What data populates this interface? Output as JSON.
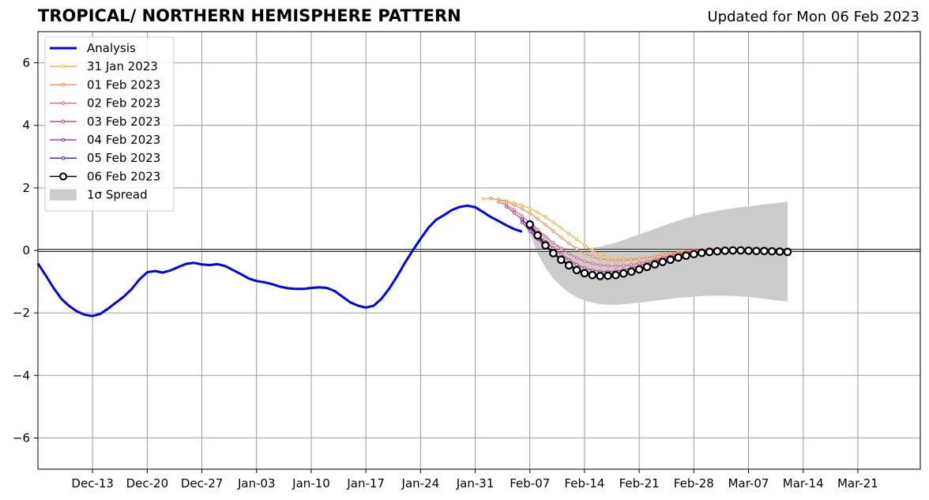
{
  "chart_data": {
    "type": "line",
    "title": "TROPICAL/ NORTHERN HEMISPHERE PATTERN",
    "subtitle": "Updated for Mon 06 Feb 2023",
    "xlabel": "",
    "ylabel": "",
    "x_range": [
      "2022-12-06",
      "2023-03-29"
    ],
    "ylim": [
      -7,
      7
    ],
    "y_ticks": [
      -6,
      -4,
      -2,
      0,
      2,
      4,
      6
    ],
    "x_ticks": [
      {
        "date": "2022-12-13",
        "label": "Dec-13"
      },
      {
        "date": "2022-12-20",
        "label": "Dec-20"
      },
      {
        "date": "2022-12-27",
        "label": "Dec-27"
      },
      {
        "date": "2023-01-03",
        "label": "Jan-03"
      },
      {
        "date": "2023-01-10",
        "label": "Jan-10"
      },
      {
        "date": "2023-01-17",
        "label": "Jan-17"
      },
      {
        "date": "2023-01-24",
        "label": "Jan-24"
      },
      {
        "date": "2023-01-31",
        "label": "Jan-31"
      },
      {
        "date": "2023-02-07",
        "label": "Feb-07"
      },
      {
        "date": "2023-02-14",
        "label": "Feb-14"
      },
      {
        "date": "2023-02-21",
        "label": "Feb-21"
      },
      {
        "date": "2023-02-28",
        "label": "Feb-28"
      },
      {
        "date": "2023-03-07",
        "label": "Mar-07"
      },
      {
        "date": "2023-03-14",
        "label": "Mar-14"
      },
      {
        "date": "2023-03-21",
        "label": "Mar-21"
      }
    ],
    "grid": true,
    "zero_line": true,
    "legend_position": "top-left",
    "colors": {
      "analysis": "#0000ee",
      "spread": "#cccccc",
      "grid": "#999999"
    },
    "analysis": {
      "name": "Analysis",
      "x": [
        "2022-12-06",
        "2022-12-07",
        "2022-12-08",
        "2022-12-09",
        "2022-12-10",
        "2022-12-11",
        "2022-12-12",
        "2022-12-13",
        "2022-12-14",
        "2022-12-15",
        "2022-12-16",
        "2022-12-17",
        "2022-12-18",
        "2022-12-19",
        "2022-12-20",
        "2022-12-21",
        "2022-12-22",
        "2022-12-23",
        "2022-12-24",
        "2022-12-25",
        "2022-12-26",
        "2022-12-27",
        "2022-12-28",
        "2022-12-29",
        "2022-12-30",
        "2022-12-31",
        "2023-01-01",
        "2023-01-02",
        "2023-01-03",
        "2023-01-04",
        "2023-01-05",
        "2023-01-06",
        "2023-01-07",
        "2023-01-08",
        "2023-01-09",
        "2023-01-10",
        "2023-01-11",
        "2023-01-12",
        "2023-01-13",
        "2023-01-14",
        "2023-01-15",
        "2023-01-16",
        "2023-01-17",
        "2023-01-18",
        "2023-01-19",
        "2023-01-20",
        "2023-01-21",
        "2023-01-22",
        "2023-01-23",
        "2023-01-24",
        "2023-01-25",
        "2023-01-26",
        "2023-01-27",
        "2023-01-28",
        "2023-01-29",
        "2023-01-30",
        "2023-01-31",
        "2023-02-01",
        "2023-02-02",
        "2023-02-03",
        "2023-02-04",
        "2023-02-05",
        "2023-02-06"
      ],
      "y": [
        -0.42,
        -0.8,
        -1.2,
        -1.55,
        -1.78,
        -1.95,
        -2.06,
        -2.1,
        -2.03,
        -1.86,
        -1.67,
        -1.48,
        -1.24,
        -0.93,
        -0.7,
        -0.66,
        -0.71,
        -0.64,
        -0.53,
        -0.43,
        -0.4,
        -0.45,
        -0.47,
        -0.44,
        -0.5,
        -0.63,
        -0.76,
        -0.9,
        -0.98,
        -1.02,
        -1.08,
        -1.16,
        -1.21,
        -1.23,
        -1.23,
        -1.2,
        -1.18,
        -1.2,
        -1.3,
        -1.48,
        -1.66,
        -1.77,
        -1.83,
        -1.77,
        -1.55,
        -1.22,
        -0.83,
        -0.4,
        0.0,
        0.37,
        0.72,
        0.98,
        1.13,
        1.29,
        1.39,
        1.43,
        1.38,
        1.23,
        1.07,
        0.94,
        0.8,
        0.68,
        0.6
      ]
    },
    "forecasts": [
      {
        "name": "31 Jan 2023",
        "color": "#f6b03a",
        "x": [
          "2023-02-01",
          "2023-02-02",
          "2023-02-03",
          "2023-02-04",
          "2023-02-05",
          "2023-02-06",
          "2023-02-07",
          "2023-02-08",
          "2023-02-09",
          "2023-02-10",
          "2023-02-11",
          "2023-02-12",
          "2023-02-13",
          "2023-02-14",
          "2023-02-15",
          "2023-02-16",
          "2023-02-17",
          "2023-02-18",
          "2023-02-19",
          "2023-02-20",
          "2023-02-21",
          "2023-02-22",
          "2023-02-23",
          "2023-02-24",
          "2023-02-25",
          "2023-02-26",
          "2023-02-27",
          "2023-02-28",
          "2023-03-01",
          "2023-03-02",
          "2023-03-03",
          "2023-03-04",
          "2023-03-05",
          "2023-03-06",
          "2023-03-07"
        ],
        "y": [
          1.65,
          1.66,
          1.63,
          1.58,
          1.52,
          1.44,
          1.34,
          1.22,
          1.07,
          0.9,
          0.72,
          0.53,
          0.35,
          0.17,
          0.0,
          -0.13,
          -0.22,
          -0.26,
          -0.28,
          -0.28,
          -0.26,
          -0.22,
          -0.18,
          -0.14,
          -0.1,
          -0.06,
          -0.03,
          -0.01,
          0.01,
          0.02,
          0.03,
          0.03,
          0.02,
          0.01,
          0.0
        ]
      },
      {
        "name": "01 Feb 2023",
        "color": "#f08a4b",
        "x": [
          "2023-02-02",
          "2023-02-03",
          "2023-02-04",
          "2023-02-05",
          "2023-02-06",
          "2023-02-07",
          "2023-02-08",
          "2023-02-09",
          "2023-02-10",
          "2023-02-11",
          "2023-02-12",
          "2023-02-13",
          "2023-02-14",
          "2023-02-15",
          "2023-02-16",
          "2023-02-17",
          "2023-02-18",
          "2023-02-19",
          "2023-02-20",
          "2023-02-21",
          "2023-02-22",
          "2023-02-23",
          "2023-02-24",
          "2023-02-25",
          "2023-02-26",
          "2023-02-27",
          "2023-02-28",
          "2023-03-01",
          "2023-03-02",
          "2023-03-03",
          "2023-03-04",
          "2023-03-05",
          "2023-03-06",
          "2023-03-07",
          "2023-03-08"
        ],
        "y": [
          1.67,
          1.62,
          1.55,
          1.45,
          1.33,
          1.19,
          1.01,
          0.82,
          0.62,
          0.42,
          0.22,
          0.05,
          -0.1,
          -0.2,
          -0.27,
          -0.3,
          -0.32,
          -0.32,
          -0.3,
          -0.27,
          -0.23,
          -0.18,
          -0.13,
          -0.09,
          -0.05,
          -0.02,
          0.01,
          0.03,
          0.05,
          0.06,
          0.06,
          0.05,
          0.04,
          0.02,
          0.0
        ]
      },
      {
        "name": "02 Feb 2023",
        "color": "#e0607e",
        "x": [
          "2023-02-03",
          "2023-02-04",
          "2023-02-05",
          "2023-02-06",
          "2023-02-07",
          "2023-02-08",
          "2023-02-09",
          "2023-02-10",
          "2023-02-11",
          "2023-02-12",
          "2023-02-13",
          "2023-02-14",
          "2023-02-15",
          "2023-02-16",
          "2023-02-17",
          "2023-02-18",
          "2023-02-19",
          "2023-02-20",
          "2023-02-21",
          "2023-02-22",
          "2023-02-23",
          "2023-02-24",
          "2023-02-25",
          "2023-02-26",
          "2023-02-27",
          "2023-02-28",
          "2023-03-01",
          "2023-03-02",
          "2023-03-03",
          "2023-03-04",
          "2023-03-05",
          "2023-03-06",
          "2023-03-07",
          "2023-03-08",
          "2023-03-09"
        ],
        "y": [
          1.55,
          1.45,
          1.3,
          1.1,
          0.88,
          0.66,
          0.45,
          0.25,
          0.07,
          -0.1,
          -0.24,
          -0.35,
          -0.42,
          -0.47,
          -0.49,
          -0.5,
          -0.49,
          -0.46,
          -0.41,
          -0.35,
          -0.29,
          -0.22,
          -0.16,
          -0.1,
          -0.05,
          -0.01,
          0.02,
          0.04,
          0.05,
          0.05,
          0.04,
          0.03,
          0.02,
          0.01,
          0.0
        ]
      },
      {
        "name": "03 Feb 2023",
        "color": "#b83a8e",
        "x": [
          "2023-02-04",
          "2023-02-05",
          "2023-02-06",
          "2023-02-07",
          "2023-02-08",
          "2023-02-09",
          "2023-02-10",
          "2023-02-11",
          "2023-02-12",
          "2023-02-13",
          "2023-02-14",
          "2023-02-15",
          "2023-02-16",
          "2023-02-17",
          "2023-02-18",
          "2023-02-19",
          "2023-02-20",
          "2023-02-21",
          "2023-02-22",
          "2023-02-23",
          "2023-02-24",
          "2023-02-25",
          "2023-02-26",
          "2023-02-27",
          "2023-02-28",
          "2023-03-01",
          "2023-03-02",
          "2023-03-03",
          "2023-03-04",
          "2023-03-05",
          "2023-03-06",
          "2023-03-07",
          "2023-03-08",
          "2023-03-09",
          "2023-03-10"
        ],
        "y": [
          1.4,
          1.2,
          0.98,
          0.74,
          0.5,
          0.28,
          0.07,
          -0.12,
          -0.3,
          -0.45,
          -0.56,
          -0.63,
          -0.67,
          -0.68,
          -0.66,
          -0.62,
          -0.56,
          -0.49,
          -0.42,
          -0.34,
          -0.27,
          -0.2,
          -0.14,
          -0.09,
          -0.05,
          -0.02,
          0.0,
          0.02,
          0.02,
          0.02,
          0.01,
          0.0,
          -0.01,
          -0.02,
          -0.02
        ]
      },
      {
        "name": "04 Feb 2023",
        "color": "#8a1aa0",
        "x": [
          "2023-02-06",
          "2023-02-07",
          "2023-02-08",
          "2023-02-09",
          "2023-02-10",
          "2023-02-11",
          "2023-02-12",
          "2023-02-13",
          "2023-02-14",
          "2023-02-15",
          "2023-02-16",
          "2023-02-17",
          "2023-02-18",
          "2023-02-19",
          "2023-02-20",
          "2023-02-21",
          "2023-02-22",
          "2023-02-23",
          "2023-02-24",
          "2023-02-25",
          "2023-02-26",
          "2023-02-27",
          "2023-02-28",
          "2023-03-01",
          "2023-03-02",
          "2023-03-03",
          "2023-03-04",
          "2023-03-05",
          "2023-03-06",
          "2023-03-07",
          "2023-03-08",
          "2023-03-09",
          "2023-03-10",
          "2023-03-11"
        ],
        "y": [
          0.9,
          0.62,
          0.36,
          0.12,
          -0.1,
          -0.3,
          -0.47,
          -0.6,
          -0.7,
          -0.76,
          -0.79,
          -0.79,
          -0.77,
          -0.72,
          -0.66,
          -0.58,
          -0.5,
          -0.42,
          -0.34,
          -0.26,
          -0.19,
          -0.13,
          -0.08,
          -0.04,
          -0.01,
          0.01,
          0.02,
          0.02,
          0.01,
          0.0,
          -0.01,
          -0.02,
          -0.03,
          -0.03
        ]
      },
      {
        "name": "05 Feb 2023",
        "color": "#5b0fa8",
        "x": [
          "2023-02-06",
          "2023-02-07",
          "2023-02-08",
          "2023-02-09",
          "2023-02-10",
          "2023-02-11",
          "2023-02-12",
          "2023-02-13",
          "2023-02-14",
          "2023-02-15",
          "2023-02-16",
          "2023-02-17",
          "2023-02-18",
          "2023-02-19",
          "2023-02-20",
          "2023-02-21",
          "2023-02-22",
          "2023-02-23",
          "2023-02-24",
          "2023-02-25",
          "2023-02-26",
          "2023-02-27",
          "2023-02-28",
          "2023-03-01",
          "2023-03-02",
          "2023-03-03",
          "2023-03-04",
          "2023-03-05",
          "2023-03-06",
          "2023-03-07",
          "2023-03-08",
          "2023-03-09",
          "2023-03-10",
          "2023-03-11"
        ],
        "y": [
          1.0,
          0.72,
          0.44,
          0.18,
          -0.06,
          -0.27,
          -0.45,
          -0.6,
          -0.71,
          -0.78,
          -0.81,
          -0.81,
          -0.78,
          -0.73,
          -0.66,
          -0.58,
          -0.5,
          -0.42,
          -0.34,
          -0.26,
          -0.19,
          -0.13,
          -0.08,
          -0.04,
          -0.01,
          0.01,
          0.02,
          0.01,
          0.0,
          -0.01,
          -0.02,
          -0.03,
          -0.04,
          -0.05
        ]
      },
      {
        "name": "06 Feb 2023",
        "color": "#000000",
        "marker": "open-circle",
        "x": [
          "2023-02-07",
          "2023-02-08",
          "2023-02-09",
          "2023-02-10",
          "2023-02-11",
          "2023-02-12",
          "2023-02-13",
          "2023-02-14",
          "2023-02-15",
          "2023-02-16",
          "2023-02-17",
          "2023-02-18",
          "2023-02-19",
          "2023-02-20",
          "2023-02-21",
          "2023-02-22",
          "2023-02-23",
          "2023-02-24",
          "2023-02-25",
          "2023-02-26",
          "2023-02-27",
          "2023-02-28",
          "2023-03-01",
          "2023-03-02",
          "2023-03-03",
          "2023-03-04",
          "2023-03-05",
          "2023-03-06",
          "2023-03-07",
          "2023-03-08",
          "2023-03-09",
          "2023-03-10",
          "2023-03-11",
          "2023-03-12"
        ],
        "y": [
          0.83,
          0.48,
          0.16,
          -0.09,
          -0.3,
          -0.48,
          -0.63,
          -0.73,
          -0.79,
          -0.82,
          -0.81,
          -0.79,
          -0.74,
          -0.68,
          -0.61,
          -0.53,
          -0.45,
          -0.37,
          -0.3,
          -0.23,
          -0.17,
          -0.12,
          -0.08,
          -0.05,
          -0.03,
          -0.01,
          0.0,
          0.0,
          -0.01,
          -0.02,
          -0.02,
          -0.03,
          -0.04,
          -0.05
        ]
      }
    ],
    "spread": {
      "name": "1σ Spread",
      "x": [
        "2023-02-07",
        "2023-02-08",
        "2023-02-09",
        "2023-02-10",
        "2023-02-11",
        "2023-02-12",
        "2023-02-13",
        "2023-02-14",
        "2023-02-15",
        "2023-02-16",
        "2023-02-17",
        "2023-02-18",
        "2023-02-19",
        "2023-02-20",
        "2023-02-21",
        "2023-02-22",
        "2023-02-23",
        "2023-02-24",
        "2023-02-25",
        "2023-02-26",
        "2023-02-27",
        "2023-02-28",
        "2023-03-01",
        "2023-03-02",
        "2023-03-03",
        "2023-03-04",
        "2023-03-05",
        "2023-03-06",
        "2023-03-07",
        "2023-03-08",
        "2023-03-09",
        "2023-03-10",
        "2023-03-11",
        "2023-03-12"
      ],
      "lower": [
        0.55,
        -0.1,
        -0.55,
        -0.9,
        -1.15,
        -1.35,
        -1.5,
        -1.6,
        -1.67,
        -1.72,
        -1.74,
        -1.74,
        -1.72,
        -1.7,
        -1.67,
        -1.64,
        -1.61,
        -1.58,
        -1.55,
        -1.52,
        -1.5,
        -1.48,
        -1.46,
        -1.45,
        -1.45,
        -1.45,
        -1.46,
        -1.47,
        -1.49,
        -1.52,
        -1.55,
        -1.58,
        -1.61,
        -1.64
      ],
      "upper": [
        0.95,
        0.72,
        0.45,
        0.25,
        0.12,
        0.05,
        0.03,
        0.05,
        0.08,
        0.12,
        0.18,
        0.25,
        0.33,
        0.42,
        0.51,
        0.6,
        0.69,
        0.78,
        0.87,
        0.95,
        1.03,
        1.1,
        1.17,
        1.22,
        1.27,
        1.31,
        1.35,
        1.38,
        1.41,
        1.44,
        1.47,
        1.5,
        1.53,
        1.56
      ]
    }
  }
}
